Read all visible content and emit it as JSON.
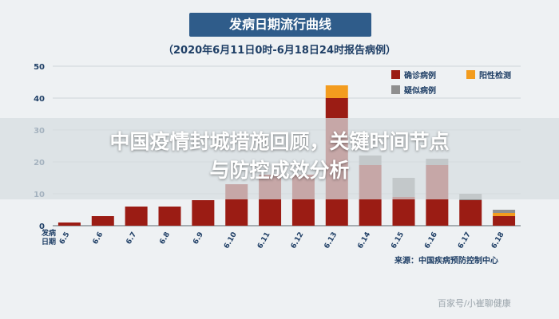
{
  "header": {
    "title": "发病日期流行曲线",
    "subtitle": "（2020年6月11日0时-6月18日24时报告病例）"
  },
  "overlay": {
    "line1": "中国疫情封城措施回顾，关键时间节点",
    "line2": "与防控成效分析"
  },
  "source": "来源：中国疾病预防控制中心",
  "watermark": "百家号/小崔聊健康",
  "chart_data": {
    "type": "bar",
    "stacked": true,
    "categories": [
      "6.5",
      "6.6",
      "6.7",
      "6.8",
      "6.9",
      "6.10",
      "6.11",
      "6.12",
      "6.13",
      "6.14",
      "6.15",
      "6.16",
      "6.17",
      "6.18"
    ],
    "xlabel": "发病日期",
    "ylim": [
      0,
      50
    ],
    "yticks": [
      0,
      10,
      20,
      30,
      40,
      50
    ],
    "grid": true,
    "legend_position": "top-right",
    "series": [
      {
        "name": "确诊病例",
        "color": "#9b1c14",
        "values": [
          1,
          3,
          6,
          6,
          8,
          13,
          16,
          16,
          40,
          19,
          9,
          19,
          8,
          3
        ]
      },
      {
        "name": "阳性检测",
        "color": "#f39c1e",
        "values": [
          0,
          0,
          0,
          0,
          0,
          0,
          0,
          0,
          4,
          0,
          0,
          0,
          0,
          1
        ]
      },
      {
        "name": "疑似病例",
        "color": "#8f8f8f",
        "values": [
          0,
          0,
          0,
          0,
          0,
          0,
          0,
          0,
          0,
          3,
          6,
          2,
          2,
          1
        ]
      }
    ]
  }
}
